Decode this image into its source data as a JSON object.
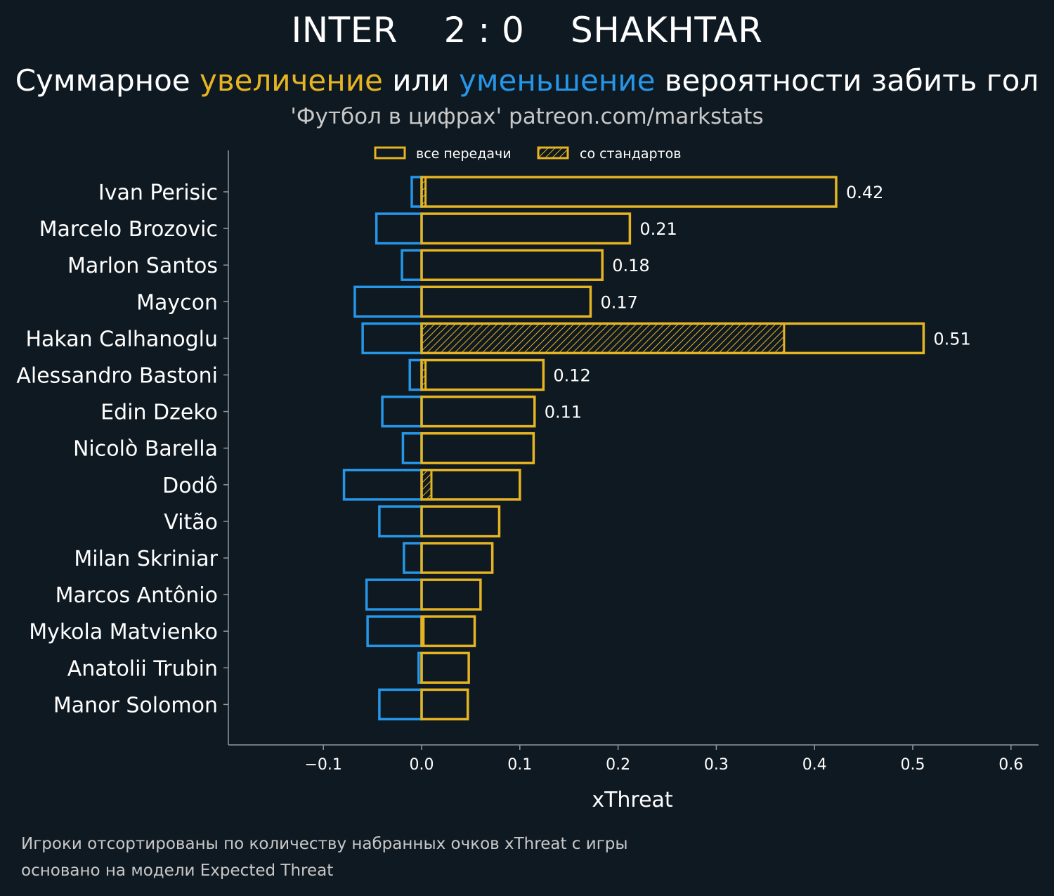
{
  "header": {
    "team_home": "INTER",
    "score": "2 : 0",
    "team_away": "SHAKHTAR",
    "subtitle_pre": "Суммарное ",
    "subtitle_increase": "увеличение",
    "subtitle_mid": " или ",
    "subtitle_decrease": "уменьшение",
    "subtitle_post": " вероятности забить гол",
    "source": "'Футбол в цифрах' patreon.com/markstats"
  },
  "footnotes": {
    "line1": "Игроки отсортированы по количеству набранных очков xThreat с игры",
    "line2": "основано на модели Expected Threat"
  },
  "colors": {
    "background": "#0f1921",
    "positive": "#e6b422",
    "negative": "#2596e8",
    "axis": "#8a9aa5",
    "text": "#ffffff",
    "muted": "#c8c8c8"
  },
  "chart_data": {
    "type": "bar",
    "orientation": "horizontal",
    "xlabel": "xThreat",
    "xlim": [
      -0.2,
      0.63
    ],
    "xticks": [
      -0.1,
      0.0,
      0.1,
      0.2,
      0.3,
      0.4,
      0.5,
      0.6
    ],
    "xtick_labels": [
      "−0.1",
      "0.0",
      "0.1",
      "0.2",
      "0.3",
      "0.4",
      "0.5",
      "0.6"
    ],
    "legend": {
      "position": "top",
      "all_passes": "все передачи",
      "set_pieces": "со стандартов"
    },
    "categories": [
      "Ivan Perisic",
      "Marcelo Brozovic",
      "Marlon Santos",
      "Maycon",
      "Hakan Calhanoglu",
      "Alessandro Bastoni",
      "Edin Dzeko",
      "Nicolò Barella",
      "Dodô",
      "Vitão",
      "Milan Skriniar",
      "Marcos Antônio",
      "Mykola Matvienko",
      "Anatolii Trubin",
      "Manor Solomon"
    ],
    "series": [
      {
        "name": "увеличение (все передачи)",
        "values": [
          0.422,
          0.212,
          0.184,
          0.172,
          0.511,
          0.124,
          0.115,
          0.114,
          0.1,
          0.079,
          0.072,
          0.06,
          0.054,
          0.048,
          0.047
        ]
      },
      {
        "name": "увеличение (со стандартов)",
        "values": [
          0.004,
          0.0,
          0.0,
          0.0,
          0.369,
          0.004,
          0.0,
          0.0,
          0.01,
          0.0,
          0.0,
          0.0,
          0.002,
          0.0,
          0.0
        ]
      },
      {
        "name": "уменьшение",
        "values": [
          -0.01,
          -0.046,
          -0.02,
          -0.068,
          -0.06,
          -0.012,
          -0.04,
          -0.019,
          -0.079,
          -0.043,
          -0.018,
          -0.056,
          -0.055,
          -0.003,
          -0.043
        ]
      }
    ],
    "value_labels": [
      "0.42",
      "0.21",
      "0.18",
      "0.17",
      "0.51",
      "0.12",
      "0.11",
      "",
      "",
      "",
      "",
      "",
      "",
      "",
      ""
    ]
  }
}
